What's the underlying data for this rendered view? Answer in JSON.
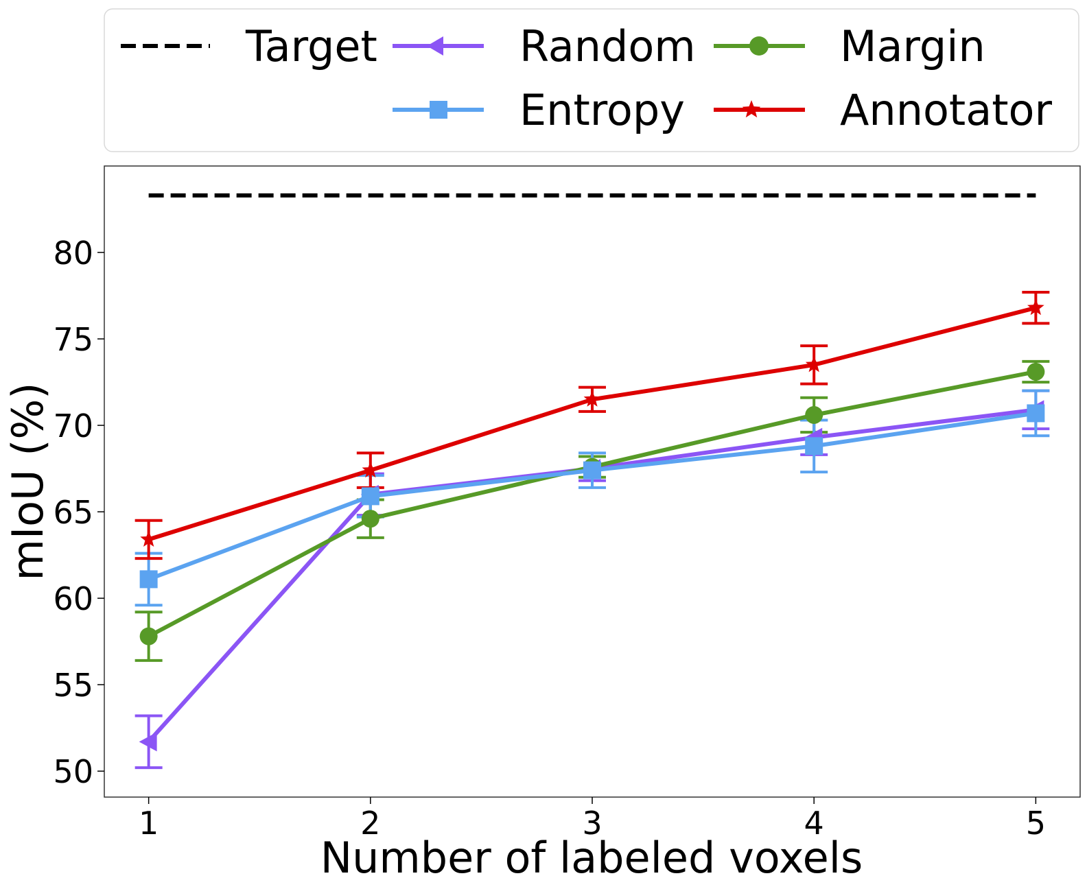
{
  "chart_data": {
    "type": "line",
    "xlabel": "Number of labeled voxels",
    "ylabel": "mIoU (%)",
    "x": [
      1,
      2,
      3,
      4,
      5
    ],
    "xticks": [
      "1",
      "2",
      "3",
      "4",
      "5"
    ],
    "yticks": [
      "50",
      "55",
      "60",
      "65",
      "70",
      "75",
      "80"
    ],
    "xlim": [
      0.8,
      5.2
    ],
    "ylim": [
      48.5,
      85.0
    ],
    "grid": false,
    "legend_position": "top",
    "target": {
      "name": "Target",
      "value": 83.3,
      "color": "#000000",
      "style": "dashed"
    },
    "series": [
      {
        "name": "Random",
        "color": "#8b55f5",
        "marker": "triangle-left",
        "values": [
          51.7,
          66.0,
          67.5,
          69.3,
          70.9
        ],
        "errors": [
          1.5,
          1.2,
          0.7,
          1.0,
          1.1
        ]
      },
      {
        "name": "Margin",
        "color": "#579a27",
        "marker": "circle",
        "values": [
          57.8,
          64.6,
          67.6,
          70.6,
          73.1
        ],
        "errors": [
          1.4,
          1.1,
          0.6,
          1.0,
          0.6
        ]
      },
      {
        "name": "Entropy",
        "color": "#5ba3f0",
        "marker": "square",
        "values": [
          61.1,
          65.9,
          67.4,
          68.8,
          70.7
        ],
        "errors": [
          1.5,
          1.2,
          1.0,
          1.5,
          1.3
        ]
      },
      {
        "name": "Annotator",
        "color": "#dd0000",
        "marker": "star",
        "values": [
          63.4,
          67.4,
          71.5,
          73.5,
          76.8
        ],
        "errors": [
          1.1,
          1.0,
          0.7,
          1.1,
          0.9
        ]
      }
    ]
  }
}
